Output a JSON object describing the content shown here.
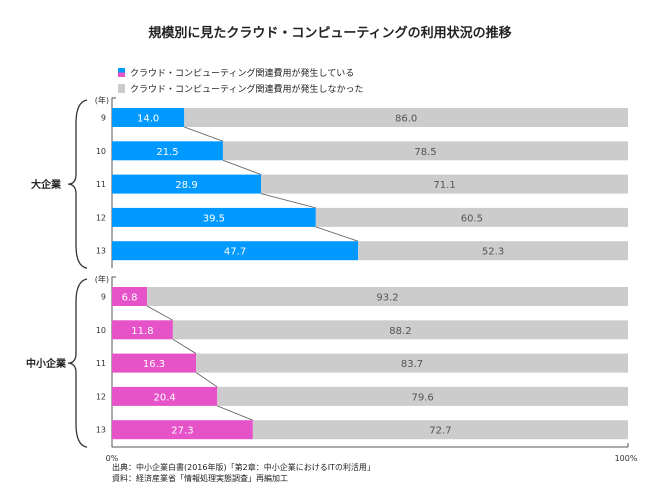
{
  "chart_data": {
    "type": "bar",
    "stacked": true,
    "orientation": "horizontal",
    "title": "規模別に見たクラウド・コンピューティングの利用状況の推移",
    "legend": [
      {
        "label": "クラウド・コンピューティング関連費用が発生している",
        "colors": [
          "#0099ff",
          "#e653c8"
        ]
      },
      {
        "label": "クラウド・コンピューティング関連費用が発生しなかった",
        "colors": [
          "#cccccc"
        ]
      }
    ],
    "legend_position": "top-left",
    "year_unit_label": "(年)",
    "xlim": [
      0,
      100
    ],
    "x_tick_labels": [
      "0%",
      "100%"
    ],
    "groups": [
      {
        "name": "大企業",
        "color": "#0099ff",
        "categories": [
          "9",
          "10",
          "11",
          "12",
          "13"
        ],
        "incurred": [
          14.0,
          21.5,
          28.9,
          39.5,
          47.7
        ],
        "not_incurred": [
          86.0,
          78.5,
          71.1,
          60.5,
          52.3
        ]
      },
      {
        "name": "中小企業",
        "color": "#e653c8",
        "categories": [
          "9",
          "10",
          "11",
          "12",
          "13"
        ],
        "incurred": [
          6.8,
          11.8,
          16.3,
          20.4,
          27.3
        ],
        "not_incurred": [
          93.2,
          88.2,
          83.7,
          79.6,
          72.7
        ]
      }
    ],
    "grey_color": "#cccccc"
  },
  "source": {
    "line1": "出典：中小企業白書(2016年版)「第2章：中小企業におけるITの利活用」",
    "line2": "資料：経済産業省「情報処理実態調査」再編加工"
  }
}
